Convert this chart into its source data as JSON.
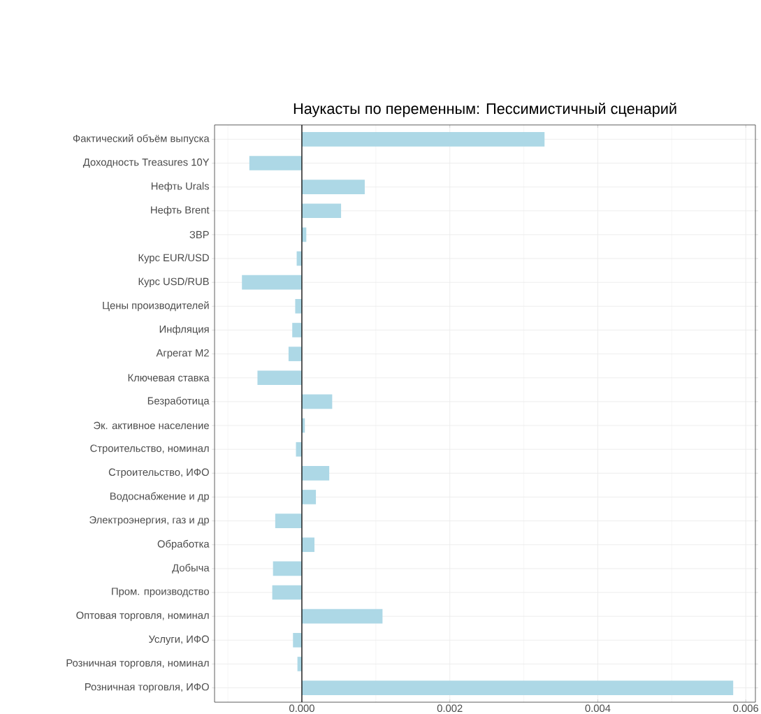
{
  "chart_data": {
    "type": "bar",
    "orientation": "horizontal",
    "title": "Наукасты по переменным: Пессимистичный сценарий",
    "categories": [
      "Фактический объём выпуска",
      "Доходность Treasures 10Y",
      "Нефть Urals",
      "Нефть Brent",
      "ЗВР",
      "Курс EUR/USD",
      "Курс USD/RUB",
      "Цены производителей",
      "Инфляция",
      "Агрегат М2",
      "Ключевая ставка",
      "Безработица",
      "Эк. активное население",
      "Строительство, номинал",
      "Строительство, ИФО",
      "Водоснабжение и др",
      "Электроэнергия, газ и др",
      "Обработка",
      "Добыча",
      "Пром. производство",
      "Оптовая торговля, номинал",
      "Услуги, ИФО",
      "Розничная торговля, номинал",
      "Розничная торговля, ИФО"
    ],
    "values": [
      0.00328,
      -0.00071,
      0.00085,
      0.00053,
      6e-05,
      -7e-05,
      -0.00081,
      -9e-05,
      -0.00013,
      -0.00018,
      -0.0006,
      0.00041,
      4e-05,
      -8e-05,
      0.00037,
      0.00019,
      -0.00036,
      0.00017,
      -0.00039,
      -0.0004,
      0.00109,
      -0.00012,
      -6e-05,
      0.00583
    ],
    "color": "#add8e6",
    "xlim": [
      -0.00118,
      0.00613
    ],
    "xticks": [
      {
        "value": 0,
        "label": "0.000"
      },
      {
        "value": 0.002,
        "label": "0.002"
      },
      {
        "value": 0.004,
        "label": "0.004"
      },
      {
        "value": 0.006,
        "label": "0.006"
      }
    ],
    "grid": true,
    "ref_lines": [
      {
        "axis": "x",
        "value": 0,
        "color": "#000000"
      }
    ]
  }
}
